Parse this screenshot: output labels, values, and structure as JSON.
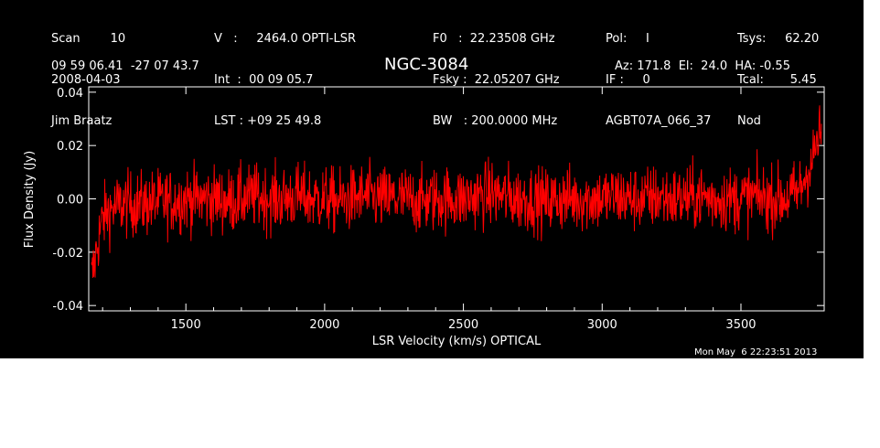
{
  "header": {
    "col1": [
      "Scan        10",
      "2008-04-03",
      "Jim Braatz"
    ],
    "col2": [
      "V   :     2464.0 OPTI-LSR",
      "Int  :  00 09 05.7",
      "LST : +09 25 49.8"
    ],
    "col3": [
      "F0   :  22.23508 GHz",
      "Fsky :  22.05207 GHz",
      "BW   : 200.0000 MHz"
    ],
    "col4": [
      "Pol:     I",
      "IF :     0",
      "AGBT07A_066_37"
    ],
    "col5": [
      "Tsys:     62.20",
      "Tcal:       5.45",
      "Nod"
    ],
    "coords": "09 59 06.41  -27 07 43.7",
    "source": "NGC-3084",
    "pointing": "Az: 171.8  El:  24.0  HA: -0.55",
    "timestamp": "Mon May  6 22:23:51 2013"
  },
  "chart_data": {
    "type": "line",
    "xlabel": "LSR Velocity (km/s) OPTICAL",
    "ylabel": "Flux Density (Jy)",
    "xlim": [
      1150,
      3800
    ],
    "ylim": [
      -0.042,
      0.042
    ],
    "xticks": [
      1500,
      2000,
      2500,
      3000,
      3500
    ],
    "xtick_labels": [
      "1500",
      "2000",
      "2500",
      "3000",
      "3500"
    ],
    "yticks": [
      -0.04,
      -0.02,
      0.0,
      0.02,
      0.04
    ],
    "ytick_labels": [
      "-0.04",
      "-0.02",
      "0.00",
      "0.02",
      "0.04"
    ],
    "series": [
      {
        "color": "#ff0000",
        "x": [
          1160,
          1170,
          1180,
          1190,
          1200,
          1215,
          1230,
          1250,
          1275,
          1300,
          1350,
          1400,
          1450,
          1500,
          1550,
          1600,
          1650,
          1700,
          1750,
          1800,
          1850,
          1900,
          1950,
          2000,
          2050,
          2100,
          2150,
          2200,
          2250,
          2300,
          2350,
          2400,
          2450,
          2500,
          2550,
          2600,
          2650,
          2700,
          2750,
          2800,
          2850,
          2900,
          2950,
          3000,
          3050,
          3100,
          3150,
          3200,
          3250,
          3300,
          3350,
          3400,
          3450,
          3500,
          3550,
          3600,
          3650,
          3700,
          3720,
          3740,
          3760,
          3770,
          3780,
          3790
        ],
        "y": [
          -0.03,
          -0.025,
          -0.018,
          -0.012,
          -0.008,
          -0.005,
          -0.004,
          -0.003,
          -0.002,
          -0.002,
          -0.002,
          -0.001,
          -0.001,
          0.0,
          0.0,
          0.0,
          -0.001,
          0.0,
          0.001,
          0.0,
          0.0,
          0.001,
          0.0,
          0.0,
          -0.001,
          0.0,
          0.001,
          0.0,
          0.0,
          0.0,
          -0.001,
          0.0,
          0.0,
          0.0,
          0.001,
          0.002,
          0.001,
          0.0,
          0.0,
          -0.001,
          0.0,
          0.0,
          0.0,
          0.0,
          0.001,
          0.0,
          0.0,
          0.001,
          0.0,
          0.0,
          0.001,
          0.0,
          0.0,
          0.0,
          0.001,
          0.0,
          0.0,
          0.002,
          0.005,
          0.01,
          0.015,
          0.02,
          0.022,
          0.025
        ],
        "noise_amplitude": 0.011
      }
    ]
  }
}
